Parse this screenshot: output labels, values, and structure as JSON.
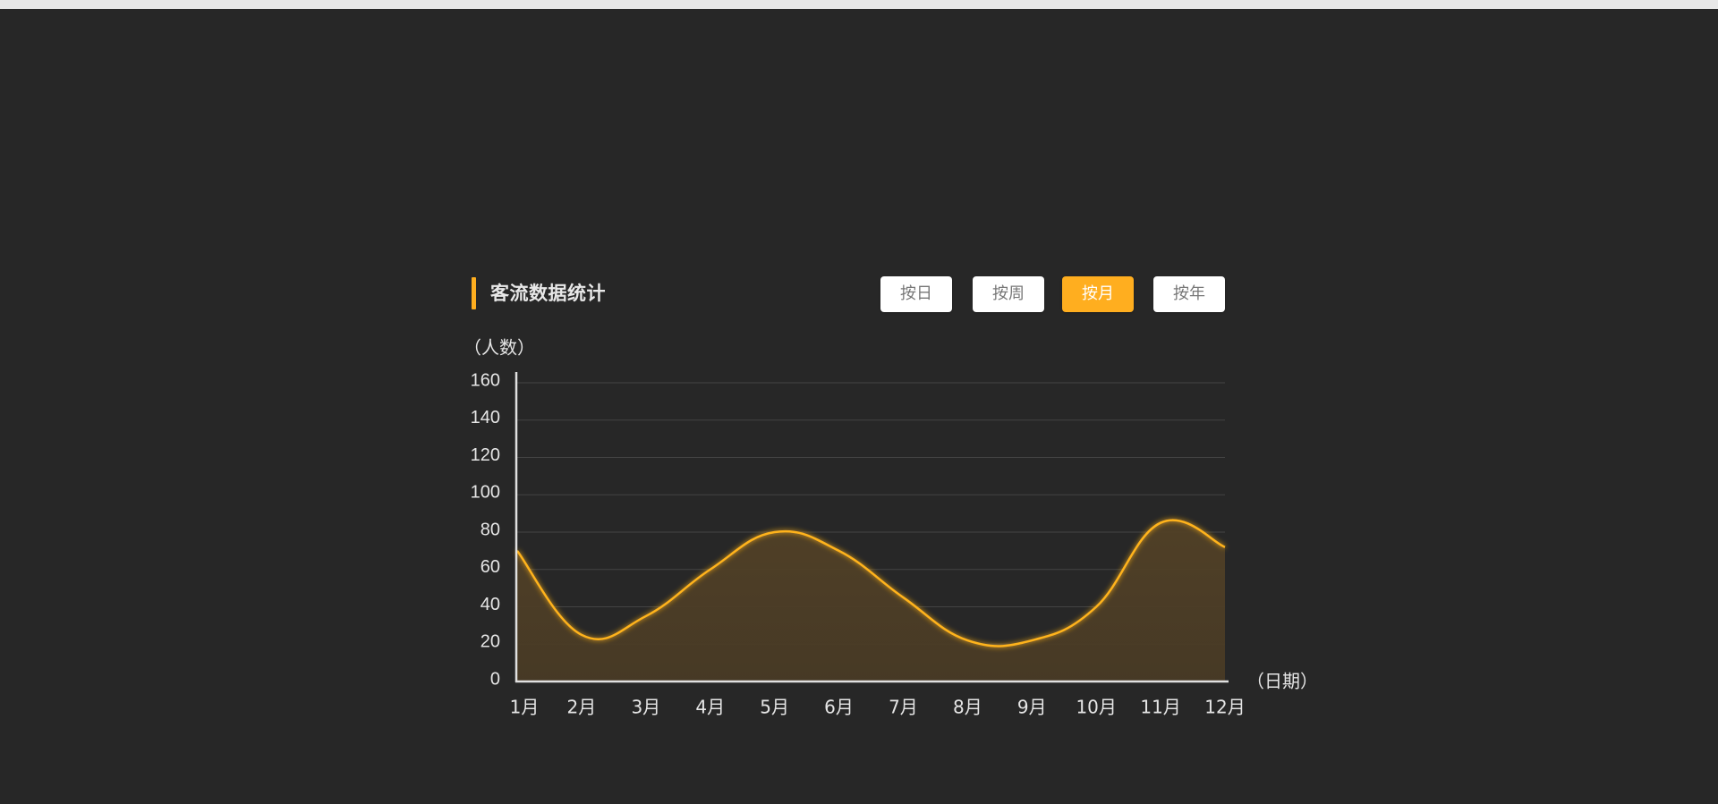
{
  "header": {
    "title": "客流数据统计",
    "buttons": [
      {
        "label": "按日",
        "active": false
      },
      {
        "label": "按周",
        "active": false
      },
      {
        "label": "按月",
        "active": true
      },
      {
        "label": "按年",
        "active": false
      }
    ]
  },
  "colors": {
    "accent": "#ffae1f",
    "background": "#272727",
    "line": "#ffb31a",
    "area": "#4a3d27",
    "grid": "#444444",
    "axis": "#e0e0e0",
    "text": "#e6e6e6"
  },
  "chart_data": {
    "type": "area",
    "title": "",
    "ylabel": "（人数）",
    "xlabel": "（日期）",
    "ylim": [
      0,
      160
    ],
    "yticks": [
      0,
      20,
      40,
      60,
      80,
      100,
      120,
      140,
      160
    ],
    "categories": [
      "1月",
      "2月",
      "3月",
      "4月",
      "5月",
      "6月",
      "7月",
      "8月",
      "9月",
      "10月",
      "11月",
      "12月"
    ],
    "series": [
      {
        "values": [
          70,
          25,
          35,
          60,
          80,
          70,
          45,
          22,
          22,
          40,
          85,
          72
        ]
      }
    ],
    "smooth": true,
    "grid": true
  }
}
